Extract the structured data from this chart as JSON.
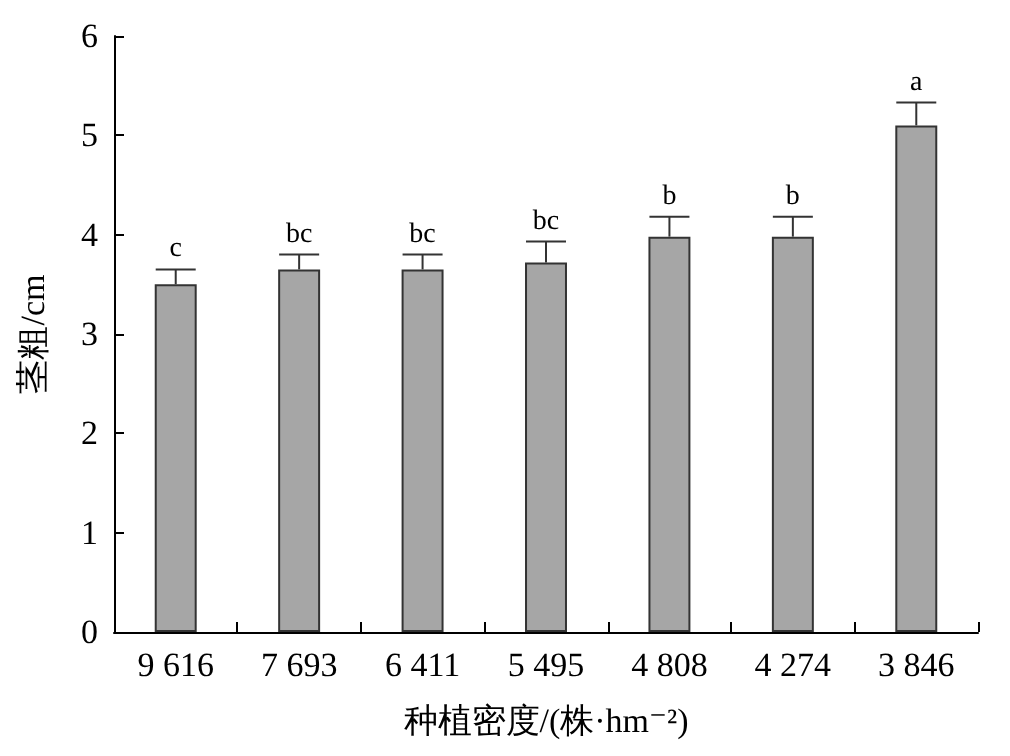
{
  "chart_data": {
    "type": "bar",
    "xlabel": "种植密度/(株·hm⁻²)",
    "ylabel": "茎粗/cm",
    "categories": [
      "9 616",
      "7 693",
      "6 411",
      "5 495",
      "4 808",
      "4 274",
      "3 846"
    ],
    "values": [
      3.5,
      3.65,
      3.65,
      3.72,
      3.98,
      3.98,
      5.1
    ],
    "errors": [
      [
        3.5,
        3.65
      ],
      [
        3.65,
        3.8
      ],
      [
        3.65,
        3.8
      ],
      [
        3.72,
        3.93
      ],
      [
        3.98,
        4.18
      ],
      [
        3.98,
        4.18
      ],
      [
        5.1,
        5.33
      ]
    ],
    "color": "#a6a6a6",
    "ylim": [
      0,
      6
    ],
    "yticks": [
      0,
      1,
      2,
      3,
      4,
      5,
      6
    ],
    "grid": false,
    "annotations": [
      {
        "text": "c",
        "x": "9 616",
        "y": 3.65
      },
      {
        "text": "bc",
        "x": "7 693",
        "y": 3.8
      },
      {
        "text": "bc",
        "x": "6 411",
        "y": 3.8
      },
      {
        "text": "bc",
        "x": "5 495",
        "y": 3.93
      },
      {
        "text": "b",
        "x": "4 808",
        "y": 4.18
      },
      {
        "text": "b",
        "x": "4 274",
        "y": 4.18
      },
      {
        "text": "a",
        "x": "3 846",
        "y": 5.33
      }
    ]
  }
}
